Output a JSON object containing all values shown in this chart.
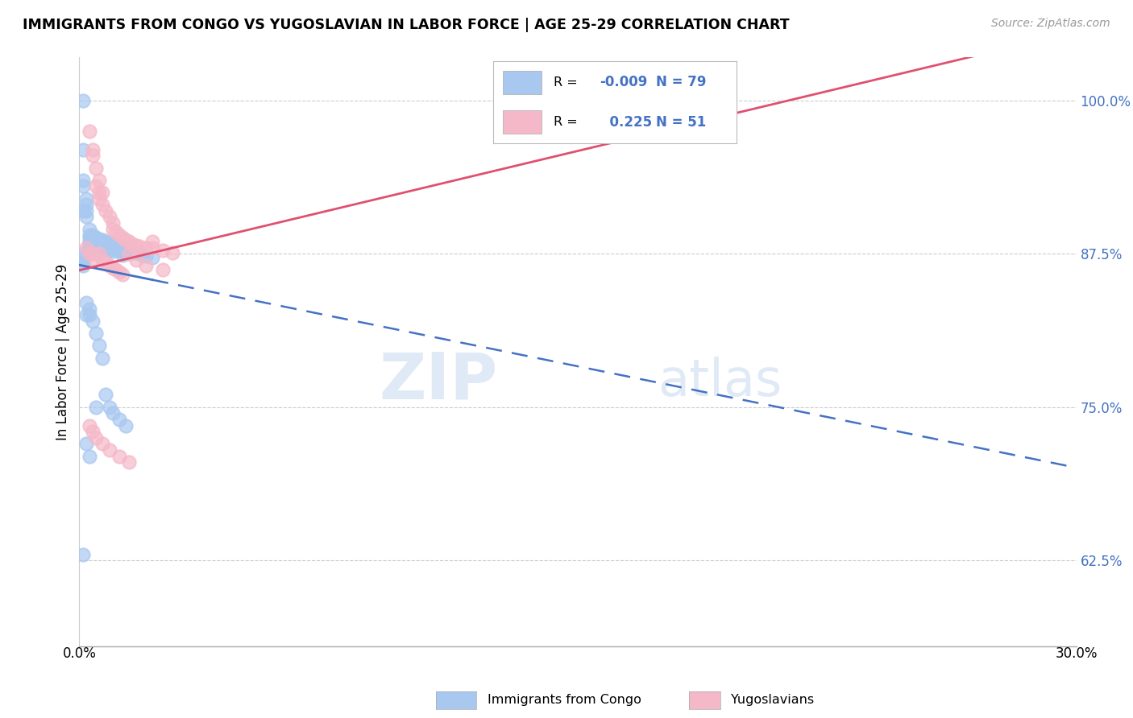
{
  "title": "IMMIGRANTS FROM CONGO VS YUGOSLAVIAN IN LABOR FORCE | AGE 25-29 CORRELATION CHART",
  "source": "Source: ZipAtlas.com",
  "ylabel": "In Labor Force | Age 25-29",
  "yticks": [
    0.625,
    0.75,
    0.875,
    1.0
  ],
  "ytick_labels": [
    "62.5%",
    "75.0%",
    "87.5%",
    "100.0%"
  ],
  "xmin": 0.0,
  "xmax": 0.3,
  "ymin": 0.555,
  "ymax": 1.035,
  "watermark_zip": "ZIP",
  "watermark_atlas": "atlas",
  "legend_R_congo": "-0.009",
  "legend_N_congo": "79",
  "legend_R_yugo": "0.225",
  "legend_N_yugo": "51",
  "congo_color": "#a8c8f0",
  "yugo_color": "#f5b8c8",
  "congo_line_color": "#4472c4",
  "yugo_line_color": "#e05070",
  "congo_x": [
    0.001,
    0.001,
    0.001,
    0.001,
    0.001,
    0.002,
    0.002,
    0.002,
    0.002,
    0.003,
    0.003,
    0.003,
    0.003,
    0.003,
    0.003,
    0.003,
    0.004,
    0.004,
    0.004,
    0.004,
    0.005,
    0.005,
    0.005,
    0.005,
    0.005,
    0.006,
    0.006,
    0.006,
    0.006,
    0.007,
    0.007,
    0.007,
    0.007,
    0.008,
    0.008,
    0.008,
    0.009,
    0.009,
    0.009,
    0.01,
    0.01,
    0.01,
    0.011,
    0.011,
    0.012,
    0.012,
    0.013,
    0.013,
    0.013,
    0.014,
    0.015,
    0.015,
    0.016,
    0.017,
    0.018,
    0.019,
    0.02,
    0.022,
    0.001,
    0.001,
    0.001,
    0.001,
    0.002,
    0.002,
    0.003,
    0.003,
    0.004,
    0.005,
    0.006,
    0.007,
    0.008,
    0.009,
    0.01,
    0.012,
    0.014,
    0.001,
    0.002,
    0.003,
    0.005
  ],
  "congo_y": [
    1.0,
    0.96,
    0.93,
    0.935,
    0.91,
    0.92,
    0.915,
    0.91,
    0.905,
    0.895,
    0.89,
    0.888,
    0.885,
    0.883,
    0.88,
    0.875,
    0.89,
    0.885,
    0.882,
    0.878,
    0.888,
    0.885,
    0.882,
    0.879,
    0.876,
    0.887,
    0.884,
    0.881,
    0.878,
    0.886,
    0.883,
    0.88,
    0.877,
    0.885,
    0.882,
    0.879,
    0.884,
    0.881,
    0.878,
    0.883,
    0.88,
    0.877,
    0.882,
    0.879,
    0.881,
    0.878,
    0.88,
    0.877,
    0.874,
    0.879,
    0.878,
    0.875,
    0.877,
    0.876,
    0.875,
    0.874,
    0.873,
    0.872,
    0.875,
    0.872,
    0.868,
    0.865,
    0.835,
    0.825,
    0.83,
    0.825,
    0.82,
    0.81,
    0.8,
    0.79,
    0.76,
    0.75,
    0.745,
    0.74,
    0.735,
    0.63,
    0.72,
    0.71,
    0.75
  ],
  "yugo_x": [
    0.003,
    0.004,
    0.004,
    0.005,
    0.005,
    0.006,
    0.006,
    0.006,
    0.007,
    0.007,
    0.008,
    0.009,
    0.01,
    0.01,
    0.011,
    0.012,
    0.013,
    0.014,
    0.015,
    0.016,
    0.017,
    0.018,
    0.02,
    0.022,
    0.022,
    0.025,
    0.028,
    0.17,
    0.002,
    0.003,
    0.004,
    0.005,
    0.006,
    0.007,
    0.008,
    0.009,
    0.01,
    0.011,
    0.012,
    0.013,
    0.015,
    0.017,
    0.02,
    0.025,
    0.003,
    0.004,
    0.005,
    0.007,
    0.009,
    0.012,
    0.015
  ],
  "yugo_y": [
    0.975,
    0.96,
    0.955,
    0.945,
    0.93,
    0.935,
    0.925,
    0.92,
    0.925,
    0.915,
    0.91,
    0.905,
    0.9,
    0.895,
    0.893,
    0.89,
    0.888,
    0.886,
    0.885,
    0.883,
    0.882,
    0.881,
    0.88,
    0.885,
    0.88,
    0.878,
    0.876,
    0.985,
    0.88,
    0.875,
    0.875,
    0.87,
    0.875,
    0.87,
    0.868,
    0.865,
    0.863,
    0.862,
    0.86,
    0.858,
    0.875,
    0.87,
    0.865,
    0.862,
    0.735,
    0.73,
    0.725,
    0.72,
    0.715,
    0.71,
    0.705
  ]
}
